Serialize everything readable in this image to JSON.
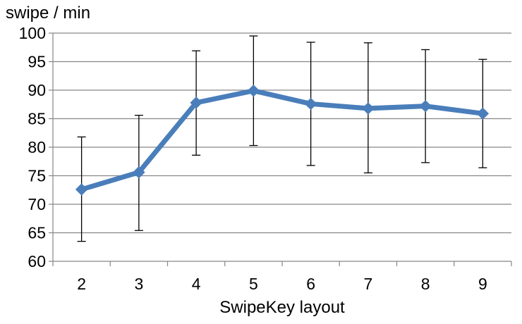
{
  "chart_data": {
    "type": "line",
    "title": "",
    "xlabel": "SwipeKey layout",
    "ylabel": "swipe / min",
    "x": [
      "2",
      "3",
      "4",
      "5",
      "6",
      "7",
      "8",
      "9"
    ],
    "series": [
      {
        "values": [
          72.6,
          75.6,
          87.8,
          89.9,
          87.6,
          86.8,
          87.2,
          85.9
        ],
        "error_upper": [
          81.8,
          85.6,
          96.9,
          99.5,
          98.4,
          98.3,
          97.1,
          95.4
        ],
        "error_lower": [
          63.5,
          65.4,
          78.6,
          80.3,
          76.8,
          75.5,
          77.3,
          76.4
        ],
        "color": "#4a7ebb",
        "marker": "diamond"
      }
    ],
    "ylim": [
      60,
      100
    ],
    "yticks": [
      60,
      65,
      70,
      75,
      80,
      85,
      90,
      95,
      100
    ],
    "grid": "horizontal",
    "legend": "none",
    "colors": {
      "gridline": "#868686",
      "axis": "#868686",
      "errorbar": "#000000"
    }
  }
}
